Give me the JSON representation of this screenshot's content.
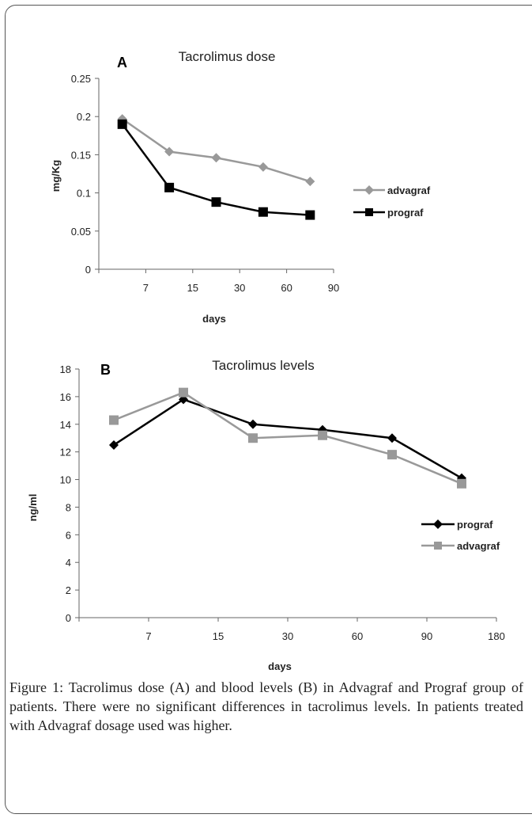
{
  "chart_data": [
    {
      "type": "line",
      "panel_letter": "A",
      "title": "Tacrolimus dose",
      "xlabel": "days",
      "ylabel": "mg/Kg",
      "categories": [
        "7",
        "15",
        "30",
        "60",
        "90"
      ],
      "yticks": [
        "0",
        "0.05",
        "0.1",
        "0.15",
        "0.2",
        "0.25"
      ],
      "ylim": [
        0,
        0.25
      ],
      "legend_position": "right",
      "series": [
        {
          "name": "advagraf",
          "color": "#999999",
          "marker": "diamond",
          "values": [
            0.197,
            0.154,
            0.146,
            0.134,
            0.115
          ]
        },
        {
          "name": "prograf",
          "color": "#000000",
          "marker": "square",
          "values": [
            0.19,
            0.107,
            0.088,
            0.075,
            0.071
          ]
        }
      ]
    },
    {
      "type": "line",
      "panel_letter": "B",
      "title": "Tacrolimus levels",
      "xlabel": "days",
      "ylabel": "ng/ml",
      "categories": [
        "7",
        "15",
        "30",
        "60",
        "90",
        "180"
      ],
      "yticks": [
        "0",
        "2",
        "4",
        "6",
        "8",
        "10",
        "12",
        "14",
        "16",
        "18"
      ],
      "ylim": [
        0,
        18
      ],
      "legend_position": "right",
      "series": [
        {
          "name": "prograf",
          "color": "#000000",
          "marker": "diamond",
          "values": [
            12.5,
            15.8,
            14.0,
            13.6,
            13.0,
            10.1
          ]
        },
        {
          "name": "advagraf",
          "color": "#999999",
          "marker": "square",
          "values": [
            14.3,
            16.3,
            13.0,
            13.2,
            11.8,
            9.7
          ]
        }
      ]
    }
  ],
  "caption": "Figure 1: Tacrolimus dose (A) and blood levels (B) in Advagraf and Prograf group of patients. There were no significant differences in tacrolimus levels. In patients treated with Advagraf dosage used was higher."
}
